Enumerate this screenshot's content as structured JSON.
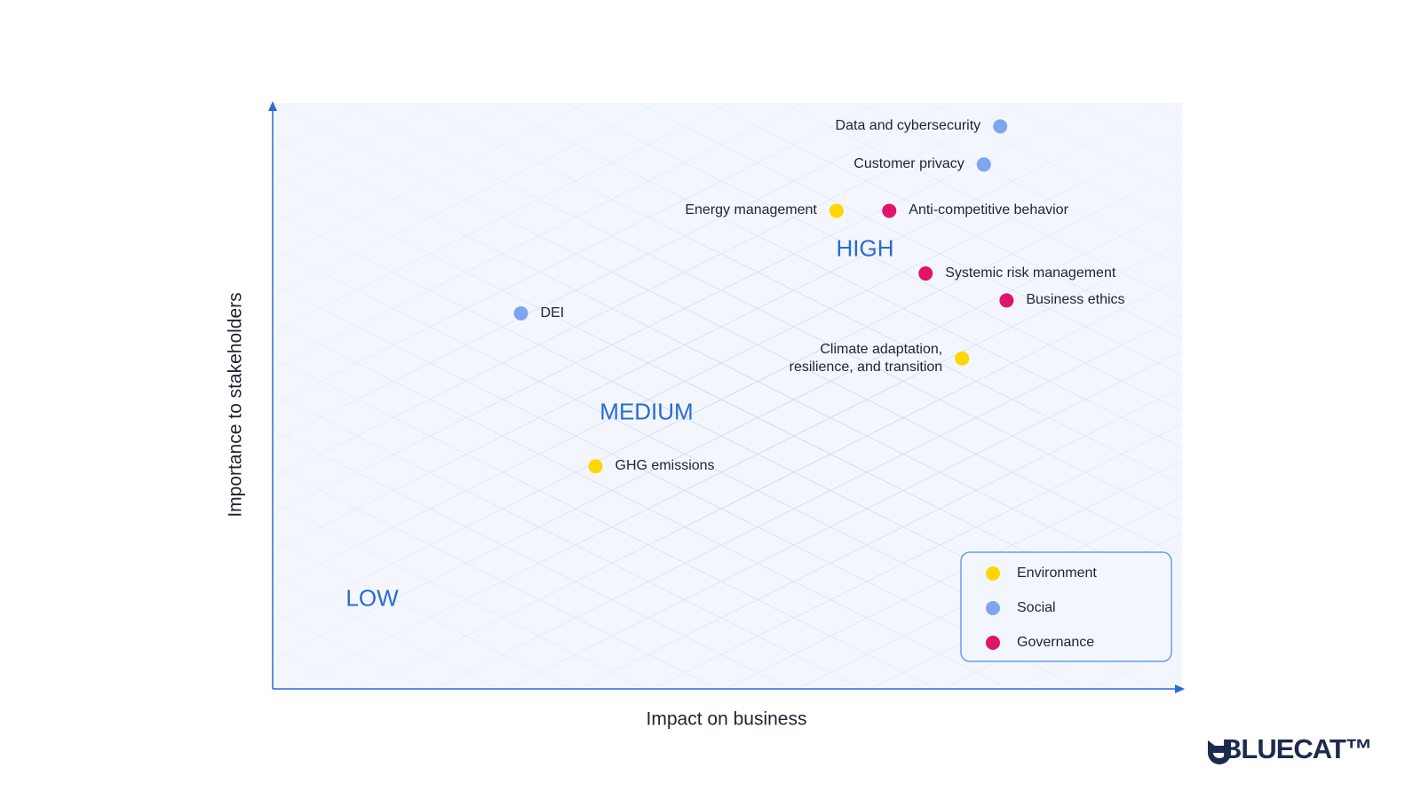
{
  "chart_data": {
    "type": "scatter",
    "xlabel": "Impact on business",
    "ylabel": "Importance to stakeholders",
    "xlim": [
      0,
      100
    ],
    "ylim": [
      0,
      100
    ],
    "annotations": [
      "LOW",
      "MEDIUM",
      "HIGH"
    ],
    "series": [
      {
        "name": "Environment",
        "color": "#FFD600",
        "labels": [
          "Energy management",
          "Climate adaptation,\nresilience, and transition",
          "GHG emissions"
        ],
        "x": [
          62,
          75.8,
          35.5
        ],
        "y": [
          81.6,
          56.4,
          38
        ]
      },
      {
        "name": "Social",
        "color": "#7EA6EE",
        "labels": [
          "Data and cybersecurity",
          "Customer privacy",
          "DEI"
        ],
        "x": [
          80,
          78.2,
          27.3
        ],
        "y": [
          96,
          89.5,
          64.1
        ]
      },
      {
        "name": "Governance",
        "color": "#E0146B",
        "labels": [
          "Anti-competitive behavior",
          "Systemic risk management",
          "Business ethics"
        ],
        "x": [
          67.8,
          71.8,
          80.7
        ],
        "y": [
          81.6,
          70.9,
          66.3
        ]
      }
    ]
  },
  "logo": "BLUECAT™"
}
